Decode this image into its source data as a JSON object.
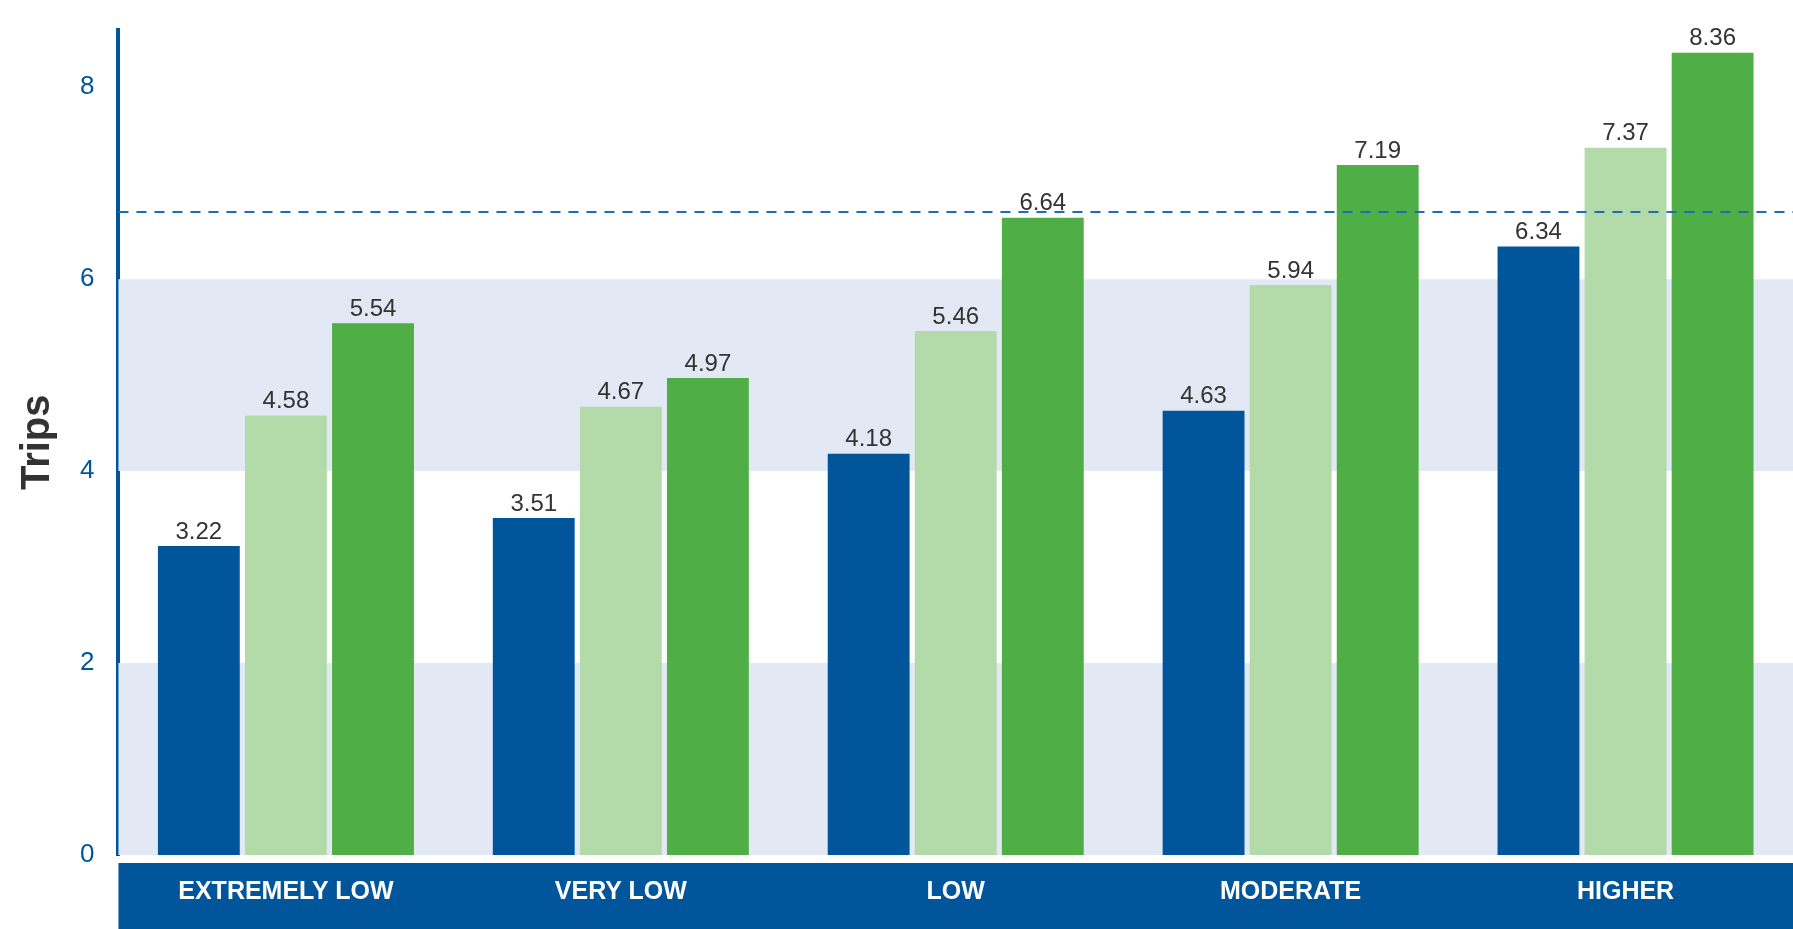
{
  "chart_data": {
    "type": "bar",
    "ylabel": "Trips",
    "categories": [
      "EXTREMELY LOW",
      "VERY LOW",
      "LOW",
      "MODERATE",
      "HIGHER"
    ],
    "series": [
      {
        "color": "#00559b",
        "values": [
          3.22,
          3.51,
          4.18,
          4.63,
          6.34
        ]
      },
      {
        "color": "#b3dbaa",
        "values": [
          4.58,
          4.67,
          5.46,
          5.94,
          7.37
        ]
      },
      {
        "color": "#4fae45",
        "values": [
          5.54,
          4.97,
          6.64,
          7.19,
          8.36
        ]
      }
    ],
    "ylim": [
      0,
      8.6
    ],
    "yticks": [
      0,
      2,
      4,
      6,
      8
    ],
    "grid": false,
    "legend": false,
    "data_labels": true,
    "ref_lines": [
      {
        "axis": "y",
        "value": 6.7,
        "color": "#1f6bb5",
        "line_style": "dashed"
      }
    ],
    "bands": [
      {
        "axis": "y",
        "from": 0,
        "to": 2,
        "color": "#e2e9f4"
      },
      {
        "axis": "y",
        "from": 4,
        "to": 6,
        "color": "#e2e9f4"
      }
    ]
  }
}
